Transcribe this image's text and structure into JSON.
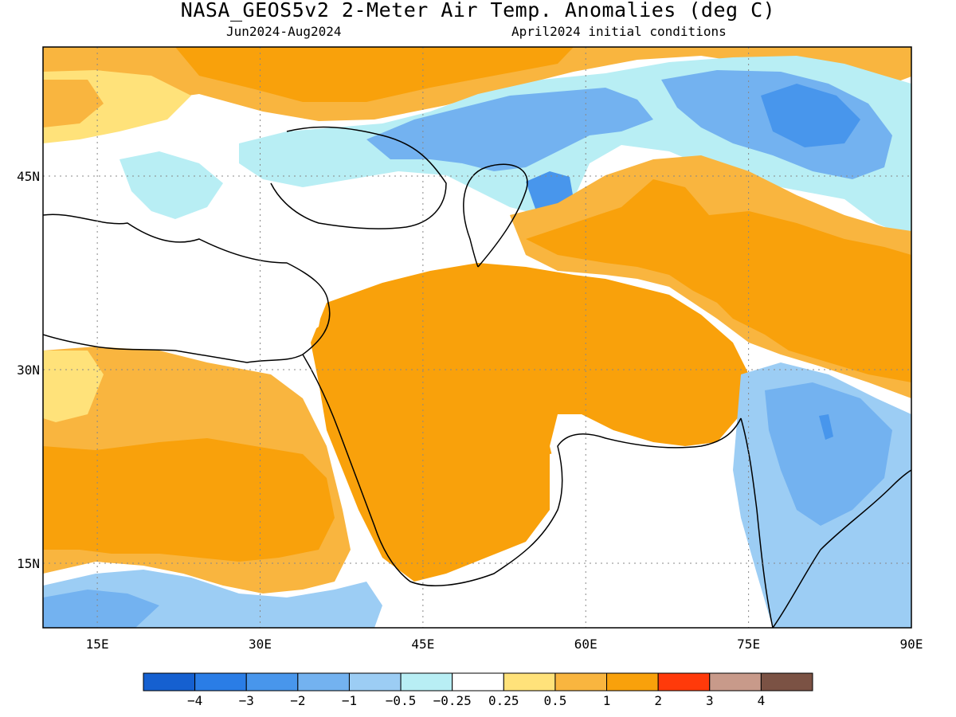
{
  "title": "NASA_GEOS5v2 2-Meter Air Temp. Anomalies (deg C)",
  "subtitle_left": "Jun2024-Aug2024",
  "subtitle_right": "April2024 initial conditions",
  "map": {
    "lon_range": [
      10,
      90
    ],
    "lat_range": [
      10,
      55
    ],
    "x_ticks": [
      "15E",
      "30E",
      "45E",
      "60E",
      "75E",
      "90E"
    ],
    "x_tick_values": [
      15,
      30,
      45,
      60,
      75,
      90
    ],
    "y_ticks": [
      "45N",
      "30N",
      "15N"
    ],
    "y_tick_values": [
      45,
      30,
      15
    ],
    "gridlines": "dotted"
  },
  "colorbar": {
    "colors": [
      "#1560d0",
      "#2a7de6",
      "#4896ec",
      "#73b2f0",
      "#9ccdf4",
      "#b8eef4",
      "#ffffff",
      "#ffe27a",
      "#f9b53f",
      "#f9a10b",
      "#ff3a0a",
      "#c89a8a",
      "#7b5244"
    ],
    "labels": [
      "-4",
      "-3",
      "-2",
      "-1",
      "-0.5",
      "-0.25",
      "0.25",
      "0.5",
      "1",
      "2",
      "3",
      "4"
    ]
  },
  "palette": {
    "white": "#ffffff",
    "light_blue": "#b8eef4",
    "blue1": "#9ccdf4",
    "blue2": "#73b2f0",
    "blue3": "#4896ec",
    "yellow": "#ffe27a",
    "orange_light": "#f9b53f",
    "orange": "#f9a10b",
    "red": "#ff3a0a"
  }
}
